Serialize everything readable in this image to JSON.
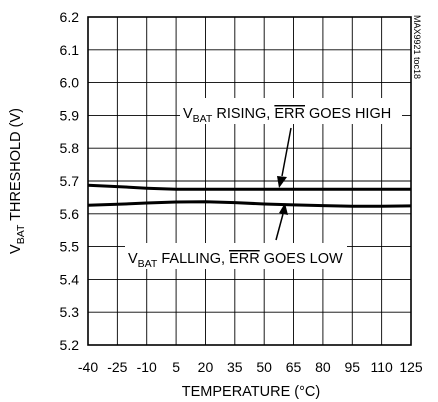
{
  "chart_data": {
    "type": "line",
    "x": [
      -40,
      -25,
      -10,
      5,
      20,
      35,
      50,
      65,
      80,
      95,
      110,
      125
    ],
    "xlim": [
      -40,
      125
    ],
    "ylim": [
      5.2,
      6.2
    ],
    "xticks": [
      "-40",
      "-25",
      "-10",
      "5",
      "20",
      "35",
      "50",
      "65",
      "80",
      "95",
      "110",
      "125"
    ],
    "yticks": [
      "5.2",
      "5.3",
      "5.4",
      "5.5",
      "5.6",
      "5.7",
      "5.8",
      "5.9",
      "6.0",
      "6.1",
      "6.2"
    ],
    "xlabel": "TEMPERATURE (°C)",
    "ylabel": {
      "prefix": "V",
      "sub": "BAT",
      "suffix": " THRESHOLD (V)"
    },
    "grid": true,
    "code": "MAX9921 toc18",
    "series": [
      {
        "values": [
          5.687,
          5.683,
          5.678,
          5.675,
          5.675,
          5.675,
          5.675,
          5.675,
          5.675,
          5.675,
          5.675,
          5.675
        ]
      },
      {
        "values": [
          5.626,
          5.629,
          5.633,
          5.636,
          5.637,
          5.634,
          5.63,
          5.627,
          5.625,
          5.623,
          5.623,
          5.624
        ]
      }
    ],
    "annotations": [
      {
        "prefix": "V",
        "sub": "BAT",
        "mid": " RISING, ",
        "over": "ERR",
        "suffix": " GOES HIGH"
      },
      {
        "prefix": "V",
        "sub": "BAT",
        "mid": " FALLING, ",
        "over": "ERR",
        "suffix": " GOES LOW"
      }
    ]
  }
}
